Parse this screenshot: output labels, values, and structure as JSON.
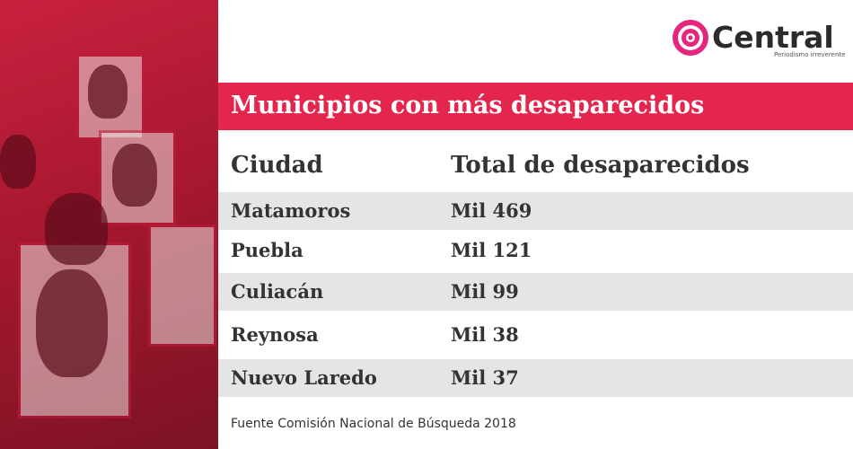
{
  "logo": {
    "name": "Central",
    "tagline": "Periodismo irreverente"
  },
  "title": "Municipios con más desaparecidos",
  "table": {
    "header": [
      "Ciudad",
      "Total de desaparecidos"
    ],
    "rows": [
      [
        "Matamoros",
        "Mil 469"
      ],
      [
        "Puebla",
        "Mil 121"
      ],
      [
        "Culiacán",
        "Mil 99"
      ],
      [
        "Reynosa",
        "Mil 38"
      ],
      [
        "Nuevo Laredo",
        "Mil 37"
      ]
    ]
  },
  "source": "Fuente Comisión Nacional de Búsqueda 2018"
}
